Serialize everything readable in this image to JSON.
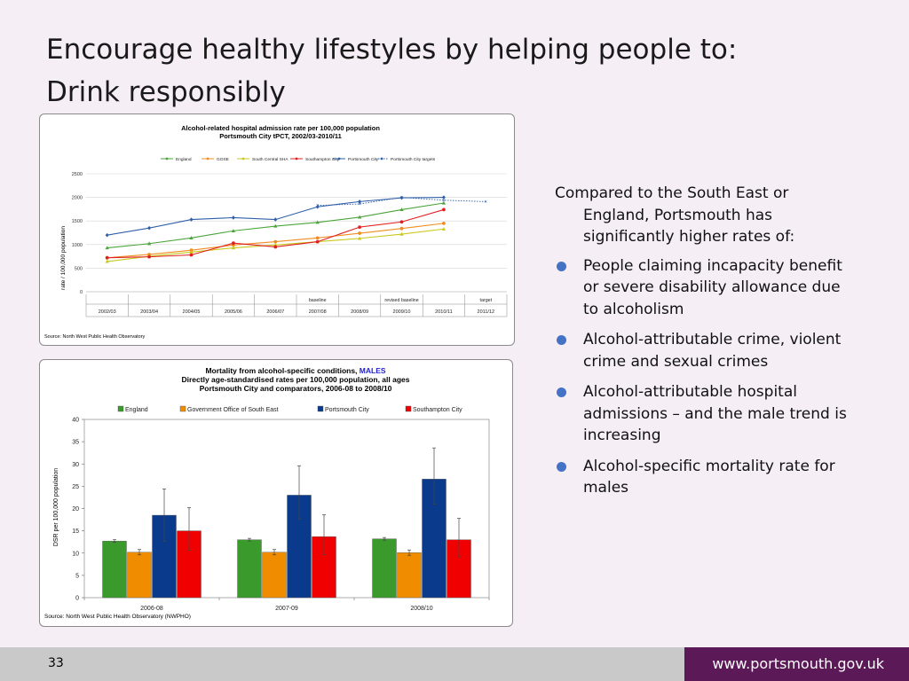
{
  "slide": {
    "title_line1": "Encourage healthy lifestyles by helping people to:",
    "title_line2": "Drink responsibly",
    "page_number": "33",
    "footer_url": "www.portsmouth.gov.uk"
  },
  "text_panel": {
    "intro": "Compared to the South East or England, Portsmouth has significantly higher rates of:",
    "bullets": [
      "People claiming incapacity benefit or severe disability allowance due to alcoholism",
      "Alcohol-attributable crime, violent crime and sexual crimes",
      "Alcohol-attributable hospital admissions – and the male trend is increasing",
      "Alcohol-specific mortality rate for males"
    ]
  },
  "colors": {
    "england_line": "#4aa43a",
    "gose_line": "#f08c20",
    "south_central_line": "#c8c81c",
    "southampton_line": "#e02020",
    "portsmouth_line": "#2e5ea8",
    "bar_england": "#3a9a2c",
    "bar_gose": "#f08c00",
    "bar_portsmouth": "#0a3a8c",
    "bar_southampton": "#f00000",
    "males_highlight": "#2020d0",
    "bullet": "#4472c4",
    "footer_accent": "#5b1a57"
  },
  "chart_data": [
    {
      "type": "line",
      "title": "Alcohol-related hospital admission rate per 100,000 population",
      "subtitle": "Portsmouth City tPCT, 2002/03-2010/11",
      "ylabel": "rate / 100,000 population",
      "ylim": [
        0,
        2500
      ],
      "yticks": [
        0,
        500,
        1000,
        1500,
        2000,
        2500
      ],
      "categories": [
        "2002/03",
        "2003/04",
        "2004/05",
        "2005/06",
        "2006/07",
        "2007/08",
        "2008/09",
        "2009/10",
        "2010/11",
        "2011/12"
      ],
      "annotations": [
        {
          "category": "2007/08",
          "text": "baseline"
        },
        {
          "category": "2009/10",
          "text": "revised baseline"
        },
        {
          "category": "2011/12",
          "text": "target"
        }
      ],
      "series": [
        {
          "name": "England",
          "values": [
            930,
            1020,
            1140,
            1290,
            1390,
            1470,
            1580,
            1740,
            1880,
            null
          ]
        },
        {
          "name": "GOSE",
          "values": [
            720,
            790,
            880,
            990,
            1060,
            1140,
            1240,
            1340,
            1450,
            null
          ]
        },
        {
          "name": "South Central SHA",
          "values": [
            640,
            750,
            840,
            930,
            990,
            1060,
            1130,
            1220,
            1330,
            null
          ]
        },
        {
          "name": "Southampton City",
          "values": [
            720,
            740,
            780,
            1030,
            950,
            1060,
            1370,
            1480,
            1740,
            null
          ]
        },
        {
          "name": "Portsmouth City",
          "values": [
            1200,
            1350,
            1530,
            1570,
            1530,
            1800,
            1910,
            1990,
            2000,
            null
          ]
        },
        {
          "name": "Portsmouth City targets",
          "values": [
            null,
            null,
            null,
            null,
            null,
            1830,
            1860,
            2000,
            1940,
            1910
          ]
        }
      ],
      "source": "Source: North West Public Health Observatory",
      "grid": true,
      "legend_position": "top"
    },
    {
      "type": "bar",
      "title_line1_prefix": "Mortality from alcohol-specific conditions,",
      "title_highlight": "MALES",
      "title_line2": "Directly age-standardised rates per 100,000 population, all ages",
      "title_line3": "Portsmouth City and comparators, 2006-08 to 2008/10",
      "ylabel": "DSR per 100,000 population",
      "ylim": [
        0,
        40
      ],
      "yticks": [
        0,
        5,
        10,
        15,
        20,
        25,
        30,
        35,
        40
      ],
      "categories": [
        "2006-08",
        "2007-09",
        "2008/10"
      ],
      "series": [
        {
          "name": "England",
          "values": [
            12.7,
            13.0,
            13.2
          ],
          "ci_low": [
            12.4,
            12.7,
            12.9
          ],
          "ci_high": [
            13.0,
            13.3,
            13.5
          ]
        },
        {
          "name": "Government Office of South East",
          "values": [
            10.2,
            10.2,
            10.1
          ],
          "ci_low": [
            9.6,
            9.6,
            9.5
          ],
          "ci_high": [
            10.8,
            10.8,
            10.7
          ]
        },
        {
          "name": "Portsmouth City",
          "values": [
            18.5,
            23.0,
            26.6
          ],
          "ci_low": [
            12.6,
            17.6,
            21.0
          ],
          "ci_high": [
            24.4,
            29.6,
            33.6
          ]
        },
        {
          "name": "Southampton City",
          "values": [
            15.0,
            13.7,
            13.0
          ],
          "ci_low": [
            10.6,
            9.6,
            9.2
          ],
          "ci_high": [
            20.2,
            18.6,
            17.8
          ]
        }
      ],
      "source": "Source: North West Public Health Observatory (NWPHO)",
      "grid": false,
      "legend_position": "top"
    }
  ]
}
